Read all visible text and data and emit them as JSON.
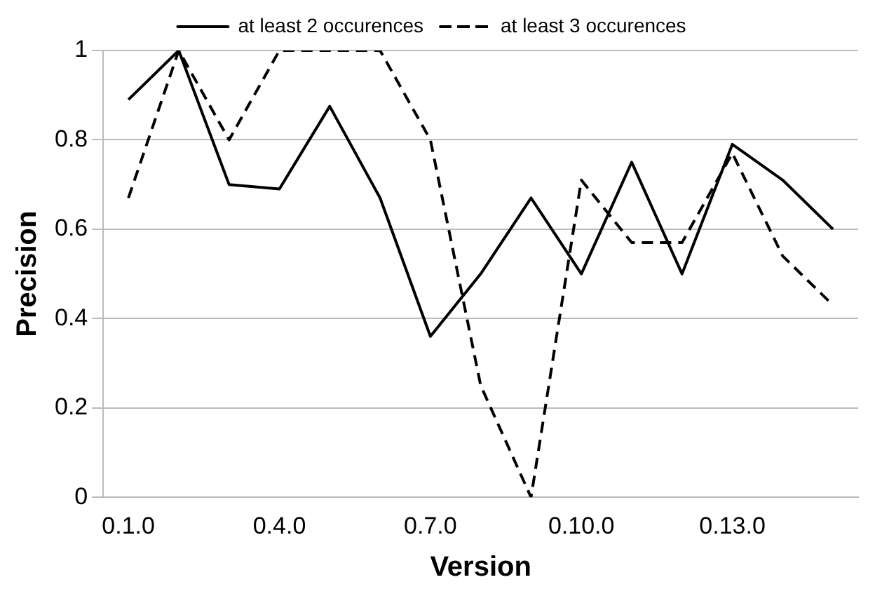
{
  "chart_data": {
    "type": "line",
    "xlabel": "Version",
    "ylabel": "Precision",
    "categories": [
      "0.1.0",
      null,
      null,
      "0.4.0",
      null,
      null,
      "0.7.0",
      null,
      null,
      "0.10.0",
      null,
      null,
      "0.13.0",
      null,
      null
    ],
    "series": [
      {
        "name": "at least 2 occurences",
        "color": "#000000",
        "line_style": "solid",
        "values": [
          0.89,
          1,
          0.7,
          0.69,
          0.875,
          0.67,
          0.36,
          0.5,
          0.67,
          0.5,
          0.75,
          0.5,
          0.79,
          0.71,
          0.6
        ]
      },
      {
        "name": "at least 3 occurences",
        "color": "#000000",
        "line_style": "dashed",
        "values": [
          0.67,
          1,
          0.8,
          1,
          1,
          1,
          0.8,
          0.25,
          0,
          0.71,
          0.57,
          0.57,
          0.77,
          0.54,
          0.43
        ]
      }
    ],
    "ylim": [
      0,
      1
    ],
    "yticks": [
      0,
      0.2,
      0.4,
      0.6,
      0.8,
      1
    ],
    "grid": "y",
    "legend": "top",
    "marker": "none"
  }
}
